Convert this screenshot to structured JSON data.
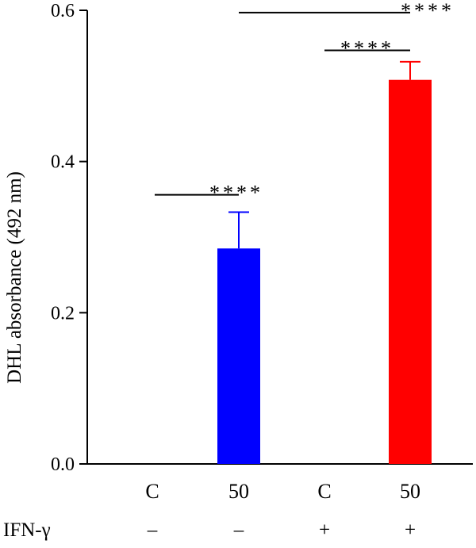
{
  "chart_data": {
    "type": "bar",
    "ylabel": "DHL absorbance (492 nm)",
    "ylim": [
      0,
      0.6
    ],
    "yticks": [
      "0.0",
      "0.2",
      "0.4",
      "0.6"
    ],
    "categories": [
      "C",
      "50",
      "C",
      "50"
    ],
    "values": [
      0,
      0.285,
      0,
      0.508
    ],
    "errors": [
      0,
      0.048,
      0,
      0.024
    ],
    "colors": [
      "#0000ff",
      "#0000ff",
      "#ff0000",
      "#ff0000"
    ],
    "factor": {
      "label": "IFN-γ",
      "values": [
        "–",
        "–",
        "+",
        "+"
      ]
    },
    "significance": [
      {
        "from": 0,
        "to": 1,
        "y": 0.356,
        "label": "****"
      },
      {
        "from": 2,
        "to": 3,
        "y": 0.547,
        "label": "****"
      },
      {
        "from": 1,
        "to": 3,
        "y": 0.597,
        "label": "****"
      }
    ]
  }
}
